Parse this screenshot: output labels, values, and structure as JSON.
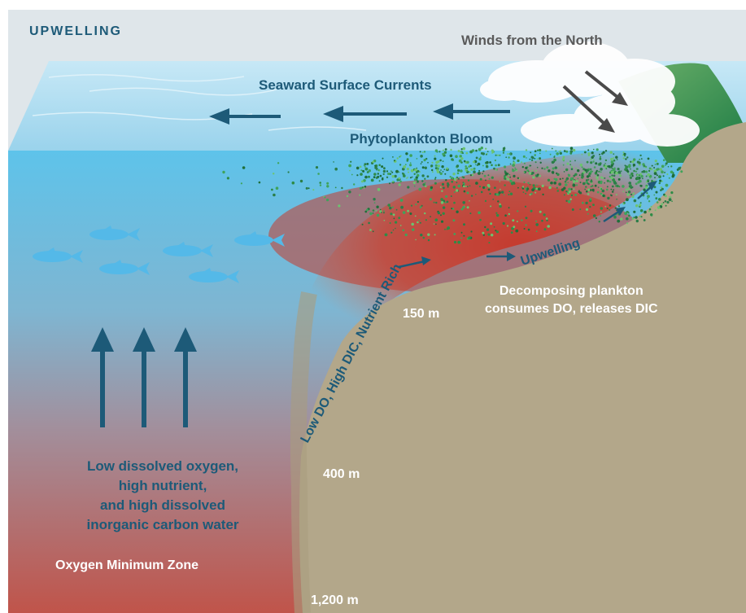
{
  "diagram": {
    "title": "UPWELLING",
    "winds_label": "Winds from the North",
    "seaward_label": "Seaward Surface Currents",
    "phytoplankton_label": "Phytoplankton Bloom",
    "slope_label": "Low DO, High DIC, Nutrient Rich",
    "upwelling_label": "Upwelling",
    "decomposing_line1": "Decomposing plankton",
    "decomposing_line2": "consumes DO, releases DIC",
    "depth_150": "150 m",
    "depth_400": "400 m",
    "depth_1200": "1,200 m",
    "low_do_line1": "Low dissolved oxygen,",
    "low_do_line2": "high nutrient,",
    "low_do_line3": "and high dissolved",
    "low_do_line4": "inorganic carbon water",
    "omz_label": "Oxygen Minimum Zone"
  },
  "colors": {
    "sky": "#dfe6ea",
    "surface": "#a9d9ef",
    "shallow_water": "#5ec3ea",
    "deep_water": "#c0544a",
    "seafloor": "#b3a78a",
    "land_green": "#1f8a4c",
    "arrow_blue": "#1d5a78",
    "wind_arrow": "#4a4a4a",
    "plankton": "#2e8b46"
  }
}
